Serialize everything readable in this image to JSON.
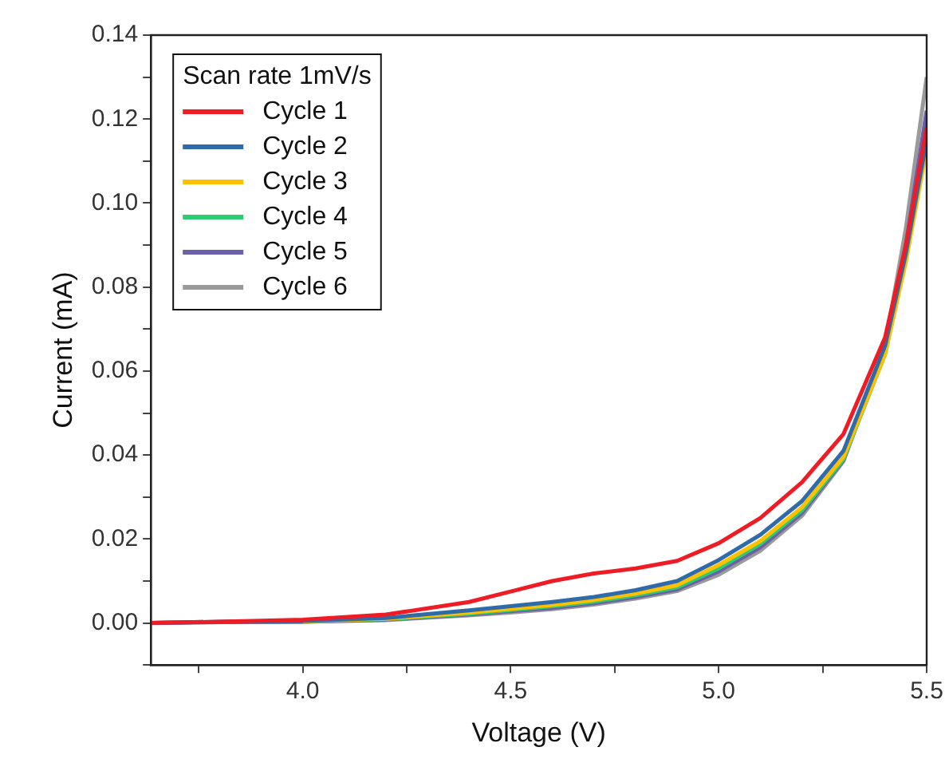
{
  "chart_data": {
    "type": "line",
    "xlabel": "Voltage (V)",
    "ylabel": "Current (mA)",
    "legend_title": "Scan rate 1mV/s",
    "legend": "top left",
    "grid": false,
    "marker": "none",
    "line_style": "solid",
    "x": [
      3.635,
      3.8,
      4.0,
      4.2,
      4.4,
      4.5,
      4.6,
      4.7,
      4.8,
      4.9,
      5.0,
      5.1,
      5.2,
      5.3,
      5.4,
      5.45,
      5.5
    ],
    "xlim": [
      3.635,
      5.5
    ],
    "xticks": [
      {
        "value": 3.75,
        "label": null
      },
      {
        "value": 4.0,
        "label": "4.0"
      },
      {
        "value": 4.25,
        "label": null
      },
      {
        "value": 4.5,
        "label": "4.5"
      },
      {
        "value": 4.75,
        "label": null
      },
      {
        "value": 5.0,
        "label": "5.0"
      },
      {
        "value": 5.25,
        "label": null
      },
      {
        "value": 5.5,
        "label": "5.5"
      }
    ],
    "ylim": [
      -0.01,
      0.14
    ],
    "yticks": [
      {
        "value": -0.01,
        "label": null
      },
      {
        "value": 0,
        "label": "0.00"
      },
      {
        "value": 0.01,
        "label": null
      },
      {
        "value": 0.02,
        "label": "0.02"
      },
      {
        "value": 0.03,
        "label": null
      },
      {
        "value": 0.04,
        "label": "0.04"
      },
      {
        "value": 0.05,
        "label": null
      },
      {
        "value": 0.06,
        "label": "0.06"
      },
      {
        "value": 0.07,
        "label": null
      },
      {
        "value": 0.08,
        "label": "0.08"
      },
      {
        "value": 0.09,
        "label": null
      },
      {
        "value": 0.1,
        "label": "0.10"
      },
      {
        "value": 0.11,
        "label": null
      },
      {
        "value": 0.12,
        "label": "0.12"
      },
      {
        "value": 0.13,
        "label": null
      },
      {
        "value": 0.14,
        "label": "0.14"
      }
    ],
    "series": [
      {
        "name": "Cycle 1",
        "color": "#ee1c25",
        "values": [
          0,
          0.0003,
          0.0008,
          0.002,
          0.005,
          0.0075,
          0.01,
          0.0118,
          0.013,
          0.0148,
          0.019,
          0.025,
          0.0335,
          0.045,
          0.068,
          0.09,
          0.118
        ]
      },
      {
        "name": "Cycle 2",
        "color": "#2f6ba8",
        "values": [
          0,
          0.0003,
          0.0005,
          0.0012,
          0.003,
          0.004,
          0.005,
          0.0062,
          0.0078,
          0.01,
          0.015,
          0.021,
          0.029,
          0.041,
          0.066,
          0.088,
          0.115
        ]
      },
      {
        "name": "Cycle 3",
        "color": "#ffc000",
        "values": [
          null,
          null,
          0.0004,
          0.001,
          0.0025,
          0.0034,
          0.0043,
          0.0055,
          0.007,
          0.009,
          0.0138,
          0.0195,
          0.0275,
          0.0395,
          0.064,
          0.086,
          0.113
        ]
      },
      {
        "name": "Cycle 4",
        "color": "#2ecc71",
        "values": [
          null,
          null,
          0.0004,
          0.0009,
          0.0022,
          0.0031,
          0.004,
          0.0051,
          0.0066,
          0.0085,
          0.013,
          0.0188,
          0.0268,
          0.039,
          0.064,
          0.087,
          0.116
        ]
      },
      {
        "name": "Cycle 5",
        "color": "#6a5fa8",
        "values": [
          0,
          0.0002,
          0.0003,
          0.0008,
          0.002,
          0.0028,
          0.0036,
          0.0047,
          0.0062,
          0.008,
          0.0123,
          0.018,
          0.0262,
          0.0388,
          0.065,
          0.09,
          0.122
        ]
      },
      {
        "name": "Cycle 6",
        "color": "#9a9a9a",
        "values": [
          0,
          0.0002,
          0.0003,
          0.0007,
          0.0018,
          0.0025,
          0.0033,
          0.0044,
          0.0058,
          0.0076,
          0.0115,
          0.0172,
          0.0255,
          0.0385,
          0.066,
          0.094,
          0.13
        ]
      }
    ]
  }
}
